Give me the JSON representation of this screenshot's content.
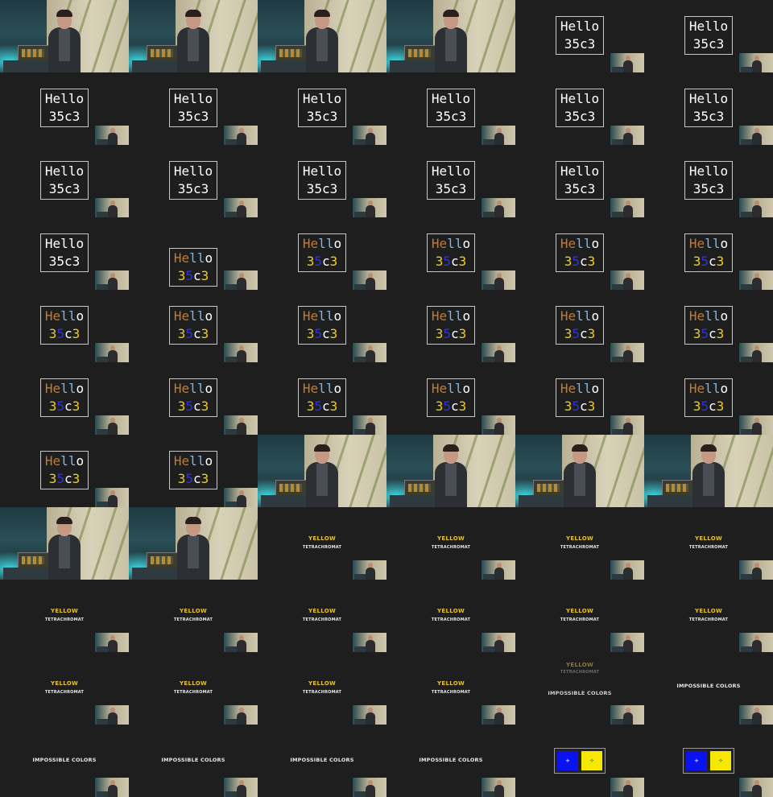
{
  "slides": {
    "hello": {
      "line1": "Hello",
      "line2": "35c3"
    },
    "yellow": {
      "word": "YELLOW",
      "sub": "TETRACHROMAT"
    },
    "impossible": {
      "title": "IMPOSSIBLE COLORS",
      "left_mark": "+",
      "right_mark": "✧"
    }
  },
  "colors": {
    "hello_white": "#ffffff",
    "hello_orange": "#c8782a",
    "hello_lightblue": "#7fb6e6",
    "hello_yellow": "#f2cc1c",
    "hello_blue": "#3030e0",
    "yellow_text": "#e9c41c",
    "square_blue": "#0b12f0",
    "square_yellow": "#f6e800"
  },
  "frames": [
    "speaker",
    "speaker",
    "speaker",
    "speaker",
    "hello-white",
    "hello-white",
    "hello-white",
    "hello-white",
    "hello-white",
    "hello-white",
    "hello-white",
    "hello-white",
    "hello-white",
    "hello-white",
    "hello-white",
    "hello-white",
    "hello-white",
    "hello-white",
    "hello-white",
    "hello-color-drop",
    "hello-color",
    "hello-color",
    "hello-color",
    "hello-color",
    "hello-color",
    "hello-color",
    "hello-color",
    "hello-color",
    "hello-color",
    "hello-color",
    "hello-color",
    "hello-color",
    "hello-color",
    "hello-color",
    "hello-color",
    "hello-color",
    "hello-color",
    "hello-color",
    "speaker",
    "speaker",
    "speaker",
    "speaker",
    "speaker",
    "speaker",
    "yellow",
    "yellow",
    "yellow",
    "yellow",
    "yellow",
    "yellow",
    "yellow",
    "yellow",
    "yellow",
    "yellow",
    "yellow",
    "yellow",
    "yellow",
    "yellow",
    "yellow-fade-impossible",
    "impossible-top",
    "impossible",
    "impossible",
    "impossible",
    "impossible",
    "squares",
    "squares"
  ]
}
